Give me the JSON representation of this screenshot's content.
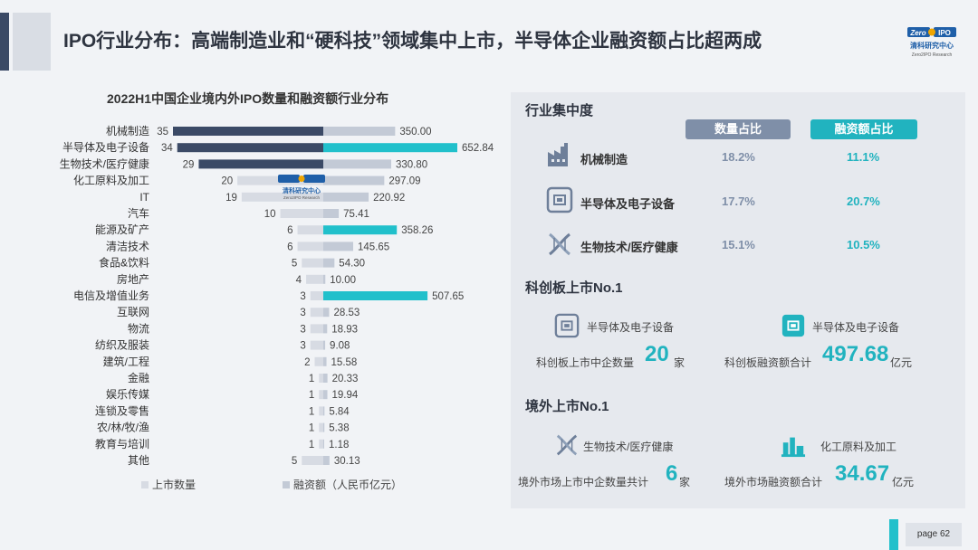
{
  "header": {
    "title": "IPO行业分布：高端制造业和“硬科技”领域集中上市，半导体企业融资额占比超两成",
    "logo_top": "ZerO2IPO",
    "logo_cn": "清科研究中心",
    "logo_en": "Zero2IPO Research"
  },
  "chart_data": {
    "type": "bar",
    "title": "2022H1中国企业境内外IPO数量和融资额行业分布",
    "categories": [
      "机械制造",
      "半导体及电子设备",
      "生物技术/医疗健康",
      "化工原料及加工",
      "IT",
      "汽车",
      "能源及矿产",
      "清洁技术",
      "食品&饮料",
      "房地产",
      "电信及增值业务",
      "互联网",
      "物流",
      "纺织及服装",
      "建筑/工程",
      "金融",
      "娱乐传媒",
      "连锁及零售",
      "农/林/牧/渔",
      "教育与培训",
      "其他"
    ],
    "series": [
      {
        "name": "上市数量",
        "values": [
          35,
          34,
          29,
          20,
          19,
          10,
          6,
          6,
          5,
          4,
          3,
          3,
          3,
          3,
          2,
          1,
          1,
          1,
          1,
          1,
          5
        ]
      },
      {
        "name": "融资额（人民币亿元）",
        "values": [
          350.0,
          652.84,
          330.8,
          297.09,
          220.92,
          75.41,
          358.26,
          145.65,
          54.3,
          10.0,
          507.65,
          28.53,
          18.93,
          9.08,
          15.58,
          20.33,
          19.94,
          5.84,
          5.38,
          1.18,
          30.13
        ]
      }
    ],
    "count_labels": [
      "35",
      "34",
      "29",
      "20",
      "19",
      "10",
      "6",
      "6",
      "5",
      "4",
      "3",
      "3",
      "3",
      "3",
      "2",
      "1",
      "1",
      "1",
      "1",
      "1",
      "5"
    ],
    "amount_labels": [
      "350.00",
      "652.84",
      "330.80",
      "297.09",
      "220.92",
      "75.41",
      "358.26",
      "145.65",
      "54.30",
      "10.00",
      "507.65",
      "28.53",
      "18.93",
      "9.08",
      "15.58",
      "20.33",
      "19.94",
      "5.84",
      "5.38",
      "1.18",
      "30.13"
    ],
    "count_highlight": [
      true,
      true,
      true,
      false,
      false,
      false,
      false,
      false,
      false,
      false,
      false,
      false,
      false,
      false,
      false,
      false,
      false,
      false,
      false,
      false,
      false
    ],
    "amount_highlight": [
      false,
      true,
      false,
      false,
      false,
      false,
      true,
      false,
      false,
      false,
      true,
      false,
      false,
      false,
      false,
      false,
      false,
      false,
      false,
      false,
      false
    ],
    "legend_count": "上市数量",
    "legend_amount": "融资额（人民币亿元）",
    "colors": {
      "count_dark": "#3b4a66",
      "count_light": "#d7dbe3",
      "amount_teal": "#21c0cb",
      "amount_light": "#c3cad6"
    }
  },
  "concentration": {
    "title": "行业集中度",
    "col_count": "数量占比",
    "col_amount": "融资额占比",
    "rows": [
      {
        "icon": "factory-icon",
        "label": "机械制造",
        "count_pct": "18.2%",
        "amount_pct": "11.1%"
      },
      {
        "icon": "chip-icon",
        "label": "半导体及电子设备",
        "count_pct": "17.7%",
        "amount_pct": "20.7%"
      },
      {
        "icon": "dna-icon",
        "label": "生物技术/医疗健康",
        "count_pct": "15.1%",
        "amount_pct": "10.5%"
      }
    ]
  },
  "star_market": {
    "title": "科创板上市No.1",
    "left_label": "半导体及电子设备",
    "right_label": "半导体及电子设备",
    "left_pre": "科创板上市中企数量",
    "left_num": "20",
    "left_unit": "家",
    "right_pre": "科创板融资额合计",
    "right_num": "497.68",
    "right_unit": "亿元"
  },
  "overseas": {
    "title": "境外上市No.1",
    "left_label": "生物技术/医疗健康",
    "right_label": "化工原料及加工",
    "left_pre": "境外市场上市中企数量共计",
    "left_num": "6",
    "left_unit": "家",
    "right_pre": "境外市场融资额合计",
    "right_num": "34.67",
    "right_unit": "亿元"
  },
  "footer": {
    "page_label": "page  62"
  },
  "colors": {
    "accent_teal": "#21c0cb",
    "slate": "#7f8fa8",
    "navy": "#3b4a66"
  }
}
